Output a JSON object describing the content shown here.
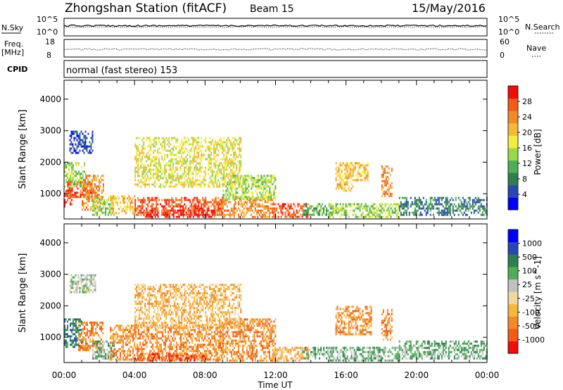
{
  "header": {
    "title": "Zhongshan Station (fitACF)",
    "beam": "Beam 15",
    "date": "15/May/2016"
  },
  "top_panels": {
    "sky_label": "N.Sky",
    "search_label": "N.Search",
    "sky_ticks": [
      "10^5",
      "10^0"
    ],
    "search_ticks": [
      "10^5",
      "10^0"
    ],
    "freq_label_1": "Freq.",
    "freq_label_2": "[MHz]",
    "freq_ticks": [
      "18",
      "8"
    ],
    "nave_label": "Nave",
    "nave_ticks": [
      "60",
      "0"
    ],
    "cpid_label": "CPID",
    "cpid_text": "normal (fast stereo) 153"
  },
  "chart_data": [
    {
      "type": "heatmap",
      "ylabel": "Slant Range [km]",
      "xlabel": "Time UT",
      "x_ticks": [
        "00:00",
        "04:00",
        "08:00",
        "12:00",
        "16:00",
        "20:00",
        "00:00"
      ],
      "xlim_hours": [
        0,
        24
      ],
      "ylim_km": [
        200,
        4600
      ],
      "y_ticks": [
        1000,
        2000,
        3000,
        4000
      ],
      "colorbar": {
        "label": "Power [dB]",
        "ticks": [
          "28",
          "24",
          "20",
          "16",
          "12",
          "8",
          "4"
        ],
        "colors": [
          "#0000ff",
          "#2849b4",
          "#2f7f4e",
          "#4fae55",
          "#99d84a",
          "#f3ed3e",
          "#f6b83a",
          "#f28a29",
          "#f25b18",
          "#f20c0c"
        ]
      },
      "regions": [
        {
          "t": [
            0.0,
            0.4
          ],
          "r": [
            600,
            1100
          ],
          "c": 9
        },
        {
          "t": [
            0.1,
            1.6
          ],
          "r": [
            900,
            1400
          ],
          "c": 8
        },
        {
          "t": [
            0.0,
            1.2
          ],
          "r": [
            1200,
            2000
          ],
          "c": 4
        },
        {
          "t": [
            1.0,
            2.2
          ],
          "r": [
            500,
            1600
          ],
          "c": 7
        },
        {
          "t": [
            0.3,
            1.6
          ],
          "r": [
            2300,
            3000
          ],
          "c": 1
        },
        {
          "t": [
            1.6,
            2.8
          ],
          "r": [
            300,
            900
          ],
          "c": 4
        },
        {
          "t": [
            2.6,
            4.0
          ],
          "r": [
            350,
            950
          ],
          "c": 6
        },
        {
          "t": [
            4.0,
            9.0
          ],
          "r": [
            300,
            900
          ],
          "c": 8
        },
        {
          "t": [
            4.5,
            8.5
          ],
          "r": [
            250,
            500
          ],
          "c": 9
        },
        {
          "t": [
            8.5,
            12.0
          ],
          "r": [
            250,
            900
          ],
          "c": 7
        },
        {
          "t": [
            11.8,
            13.8
          ],
          "r": [
            250,
            700
          ],
          "c": 8
        },
        {
          "t": [
            9.0,
            12.0
          ],
          "r": [
            800,
            1600
          ],
          "c": 4
        },
        {
          "t": [
            13.5,
            15.2
          ],
          "r": [
            300,
            700
          ],
          "c": 3
        },
        {
          "t": [
            15.0,
            19.0
          ],
          "r": [
            250,
            700
          ],
          "c": 4
        },
        {
          "t": [
            15.4,
            16.4
          ],
          "r": [
            1100,
            2000
          ],
          "c": 6
        },
        {
          "t": [
            16.4,
            17.2
          ],
          "r": [
            1400,
            2000
          ],
          "c": 6
        },
        {
          "t": [
            18.0,
            18.6
          ],
          "r": [
            900,
            1900
          ],
          "c": 7
        },
        {
          "t": [
            19.0,
            24.0
          ],
          "r": [
            300,
            900
          ],
          "c": 2
        },
        {
          "t": [
            4.0,
            10.0
          ],
          "r": [
            1200,
            2800
          ],
          "c": 5
        }
      ]
    },
    {
      "type": "heatmap",
      "ylabel": "Slant Range [km]",
      "xlabel": "Time UT",
      "x_ticks": [
        "00:00",
        "04:00",
        "08:00",
        "12:00",
        "16:00",
        "20:00",
        "00:00"
      ],
      "xlim_hours": [
        0,
        24
      ],
      "ylim_km": [
        200,
        4600
      ],
      "y_ticks": [
        1000,
        2000,
        3000,
        4000
      ],
      "colorbar": {
        "label": "Velocity [m s^-1]",
        "ticks": [
          "1000",
          "500",
          "100",
          "25",
          "-25",
          "-100",
          "-500",
          "-1000"
        ],
        "colors": [
          "#f20c0c",
          "#f25b18",
          "#f28a29",
          "#f6b83a",
          "#f0d6a0",
          "#c0c0c0",
          "#4fae55",
          "#2f7f4e",
          "#2849b4",
          "#0000ff"
        ]
      },
      "regions": [
        {
          "t": [
            0.0,
            1.0
          ],
          "r": [
            700,
            1600
          ],
          "c": 7
        },
        {
          "t": [
            0.8,
            2.2
          ],
          "r": [
            600,
            1500
          ],
          "c": 2
        },
        {
          "t": [
            0.3,
            1.8
          ],
          "r": [
            2400,
            3000
          ],
          "c": 5
        },
        {
          "t": [
            1.6,
            2.8
          ],
          "r": [
            300,
            900
          ],
          "c": 6
        },
        {
          "t": [
            2.6,
            9.0
          ],
          "r": [
            300,
            1400
          ],
          "c": 2
        },
        {
          "t": [
            4.0,
            8.0
          ],
          "r": [
            250,
            500
          ],
          "c": 1
        },
        {
          "t": [
            8.5,
            12.0
          ],
          "r": [
            250,
            900
          ],
          "c": 2
        },
        {
          "t": [
            11.8,
            13.8
          ],
          "r": [
            250,
            700
          ],
          "c": 3
        },
        {
          "t": [
            9.0,
            12.0
          ],
          "r": [
            900,
            1600
          ],
          "c": 2
        },
        {
          "t": [
            13.5,
            15.2
          ],
          "r": [
            300,
            700
          ],
          "c": 6
        },
        {
          "t": [
            15.0,
            19.0
          ],
          "r": [
            250,
            700
          ],
          "c": 6
        },
        {
          "t": [
            15.4,
            17.4
          ],
          "r": [
            1100,
            2000
          ],
          "c": 2
        },
        {
          "t": [
            18.0,
            18.6
          ],
          "r": [
            900,
            1900
          ],
          "c": 2
        },
        {
          "t": [
            19.0,
            24.0
          ],
          "r": [
            300,
            900
          ],
          "c": 6
        },
        {
          "t": [
            4.0,
            10.0
          ],
          "r": [
            1300,
            2700
          ],
          "c": 3
        }
      ]
    }
  ]
}
